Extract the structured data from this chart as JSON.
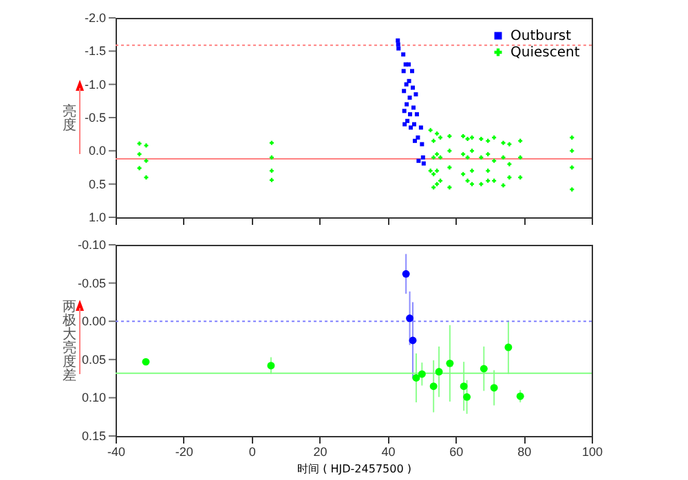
{
  "chart_data": [
    {
      "type": "scatter",
      "ylabel": "亮度",
      "xlim": [
        -40,
        100
      ],
      "xticks": [
        -40,
        -20,
        0,
        20,
        40,
        60,
        80,
        100
      ],
      "ylim": [
        1.0,
        -2.0
      ],
      "yticks": [
        {
          "value": -2,
          "label": "-2.0"
        },
        {
          "value": -1.5,
          "label": "-1.5"
        },
        {
          "value": -1,
          "label": "-1.0"
        },
        -0.5,
        {
          "value": 0,
          "label": "0.0"
        },
        0.5,
        {
          "value": 1,
          "label": "1.0"
        }
      ],
      "tick_labels": "y",
      "legend": "top right",
      "grid": false,
      "ref_lines": [
        {
          "axis": "y",
          "value": -1.59,
          "color": "#ff8080",
          "line_style": "dotted"
        },
        {
          "axis": "y",
          "value": 0.12,
          "color": "#ff8080",
          "line_style": "solid"
        }
      ],
      "series": [
        {
          "name": "Outburst",
          "color": "#0000ff",
          "marker": "square",
          "x": [
            43,
            43.1,
            43.2,
            44.6,
            44.7,
            44.8,
            44.9,
            45,
            45.3,
            45.5,
            45.6,
            45.8,
            46.2,
            46.3,
            46.5,
            46.6,
            46.8,
            47.2,
            47.4,
            47.6,
            47.8,
            48,
            48.3,
            48.6,
            48.9,
            49.1,
            49.8,
            50.1,
            50.4,
            50.6
          ],
          "values": [
            -1.66,
            -1.6,
            -1.54,
            -1.45,
            -1.2,
            -0.9,
            -0.6,
            -0.4,
            -1.3,
            -1.0,
            -0.7,
            -0.45,
            -1.3,
            -1.05,
            -0.8,
            -0.55,
            -0.35,
            -1.2,
            -0.95,
            -0.65,
            -0.4,
            -0.15,
            -0.85,
            -0.55,
            -0.2,
            0.15,
            -0.35,
            -0.1,
            0.1,
            0.19
          ]
        },
        {
          "name": "Quiescent",
          "color": "#00ff00",
          "marker": "cross",
          "x": [
            -33,
            -33,
            -33,
            -31,
            -31,
            -31,
            5.9,
            5.9,
            5.9,
            5.9,
            52.6,
            52.6,
            53.5,
            53.5,
            53.5,
            53.5,
            54.5,
            54.5,
            54.5,
            54.5,
            55.5,
            55.5,
            55.5,
            58.2,
            58.2,
            58.2,
            58.2,
            62.2,
            62.2,
            62.2,
            63.5,
            63.5,
            63.5,
            64.8,
            64.8,
            64.8,
            64.8,
            67.5,
            67.5,
            67.5,
            69.5,
            69.5,
            69.5,
            69.5,
            71.3,
            71.3,
            71.3,
            74,
            74,
            74,
            75.8,
            75.8,
            75.8,
            79,
            79,
            79,
            94.2,
            94.2,
            94.2,
            94.2
          ],
          "values": [
            -0.11,
            0.05,
            0.26,
            -0.08,
            0.15,
            0.4,
            -0.12,
            0.1,
            0.3,
            0.44,
            -0.31,
            0.3,
            -0.15,
            0.1,
            0.35,
            0.55,
            -0.26,
            0.05,
            0.3,
            0.5,
            -0.2,
            0.1,
            0.45,
            -0.22,
            0.0,
            0.25,
            0.55,
            -0.22,
            0.05,
            0.35,
            -0.18,
            0.1,
            0.45,
            -0.2,
            0.0,
            0.3,
            0.5,
            -0.18,
            0.1,
            0.5,
            -0.15,
            0.05,
            0.3,
            0.45,
            -0.2,
            0.15,
            0.45,
            -0.12,
            0.1,
            0.52,
            -0.1,
            0.2,
            0.4,
            -0.15,
            0.1,
            0.4,
            -0.2,
            0.0,
            0.25,
            0.58
          ]
        }
      ]
    },
    {
      "type": "scatter",
      "xlabel": "时间 ( HJD-2457500 )",
      "ylabel": "两极大亮度差",
      "xlim": [
        -40,
        100
      ],
      "xticks": [
        -40,
        -20,
        0,
        20,
        40,
        60,
        80,
        100
      ],
      "ylim": [
        0.15,
        -0.1
      ],
      "yticks": [
        {
          "value": -0.1,
          "label": "-0.10"
        },
        -0.05,
        {
          "value": 0,
          "label": "0.00"
        },
        0.05,
        {
          "value": 0.1,
          "label": "0.10"
        },
        0.15
      ],
      "marker": "circle",
      "grid": false,
      "ref_lines": [
        {
          "axis": "y",
          "value": 0,
          "color": "#8080ff",
          "line_style": "dotted"
        },
        {
          "axis": "y",
          "value": 0.068,
          "color": "#80ff80",
          "line_style": "solid"
        }
      ],
      "series": [
        {
          "color": "#0000ff",
          "x": [
            45.4,
            46.5,
            47.4
          ],
          "values": [
            -0.062,
            -0.004,
            0.025
          ],
          "errors": [
            0.026,
            0.035,
            0.05
          ]
        },
        {
          "color": "#00ff00",
          "x": [
            -31.1,
            5.7,
            48.4,
            50.1,
            53.5,
            55.1,
            58.3,
            62.4,
            63.3,
            68.3,
            71.3,
            75.5,
            79
          ],
          "values": [
            0.053,
            0.058,
            0.074,
            0.069,
            0.085,
            0.066,
            0.055,
            0.085,
            0.099,
            0.062,
            0.087,
            0.034,
            0.098
          ],
          "errors": [
            0.004,
            0.011,
            0.032,
            0.015,
            0.034,
            0.033,
            0.05,
            0.032,
            0.022,
            0.029,
            0.023,
            0.035,
            0.008
          ]
        }
      ]
    }
  ]
}
